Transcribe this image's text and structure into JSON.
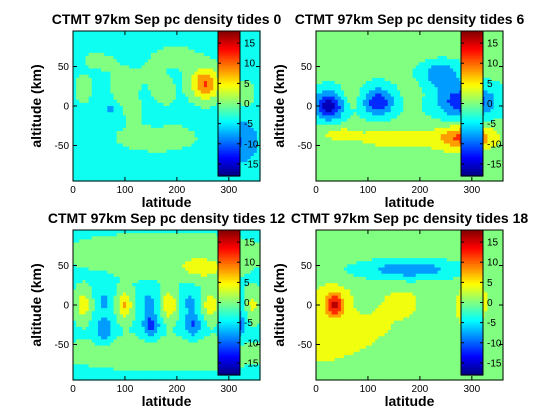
{
  "chart_data": [
    {
      "type": "heatmap",
      "title": "CTMT 97km Sep pc density tides 0",
      "xlabel": "latitude",
      "ylabel": "altitude (km)",
      "xlim": [
        0,
        360
      ],
      "ylim": [
        -95,
        95
      ],
      "xticks": [
        0,
        100,
        200,
        300
      ],
      "yticks": [
        50,
        0,
        -50
      ],
      "clim": [
        -18,
        18
      ],
      "cbar_ticks": [
        15,
        10,
        5,
        0,
        -5,
        -10,
        -15
      ],
      "background": -3.5,
      "blobs": [
        {
          "x": 40,
          "y": 60,
          "sx": 60,
          "sy": 22,
          "v": 1.5
        },
        {
          "x": 200,
          "y": 65,
          "sx": 70,
          "sy": 22,
          "v": 1.8
        },
        {
          "x": 120,
          "y": 30,
          "sx": 80,
          "sy": 30,
          "v": 1.5
        },
        {
          "x": 20,
          "y": 20,
          "sx": 15,
          "sy": 15,
          "v": 4.0
        },
        {
          "x": 95,
          "y": 15,
          "sx": 18,
          "sy": 15,
          "v": 4.5
        },
        {
          "x": 175,
          "y": 15,
          "sx": 18,
          "sy": 15,
          "v": 5.0
        },
        {
          "x": 255,
          "y": 28,
          "sx": 28,
          "sy": 20,
          "v": 14.0
        },
        {
          "x": 160,
          "y": -40,
          "sx": 110,
          "sy": 25,
          "v": 2.5
        },
        {
          "x": 320,
          "y": -45,
          "sx": 35,
          "sy": 28,
          "v": -7.0
        },
        {
          "x": 330,
          "y": 15,
          "sx": 25,
          "sy": 22,
          "v": 3.0
        },
        {
          "x": 75,
          "y": -3,
          "sx": 20,
          "sy": 13,
          "v": -3.5
        },
        {
          "x": 160,
          "y": -5,
          "sx": 22,
          "sy": 15,
          "v": -3.0
        },
        {
          "x": 115,
          "y": -5,
          "sx": 20,
          "sy": 12,
          "v": 3.0
        }
      ]
    },
    {
      "type": "heatmap",
      "title": "CTMT 97km Sep pc density tides 6",
      "xlabel": "latitude",
      "ylabel": "altitude (km)",
      "xlim": [
        0,
        360
      ],
      "ylim": [
        -95,
        95
      ],
      "xticks": [
        0,
        100,
        200,
        300
      ],
      "yticks": [
        50,
        0,
        -50
      ],
      "clim": [
        -18,
        18
      ],
      "cbar_ticks": [
        15,
        10,
        5,
        0,
        -5,
        -10,
        -15
      ],
      "background": -1.2,
      "blobs": [
        {
          "x": 180,
          "y": 70,
          "sx": 140,
          "sy": 20,
          "v": 1.5
        },
        {
          "x": 25,
          "y": 0,
          "sx": 30,
          "sy": 18,
          "v": -15.0
        },
        {
          "x": 120,
          "y": 5,
          "sx": 30,
          "sy": 18,
          "v": -12.0
        },
        {
          "x": 65,
          "y": 10,
          "sx": 20,
          "sy": 18,
          "v": 2.5
        },
        {
          "x": 290,
          "y": 5,
          "sx": 55,
          "sy": 20,
          "v": -13.0
        },
        {
          "x": 240,
          "y": 40,
          "sx": 40,
          "sy": 18,
          "v": -8.0
        },
        {
          "x": 290,
          "y": -40,
          "sx": 55,
          "sy": 15,
          "v": 13.0
        },
        {
          "x": 150,
          "y": -40,
          "sx": 80,
          "sy": 15,
          "v": 5.0
        },
        {
          "x": 40,
          "y": -35,
          "sx": 40,
          "sy": 12,
          "v": 4.0
        },
        {
          "x": 190,
          "y": 20,
          "sx": 25,
          "sy": 18,
          "v": 1.5
        },
        {
          "x": 180,
          "y": -70,
          "sx": 150,
          "sy": 20,
          "v": 1.8
        }
      ]
    },
    {
      "type": "heatmap",
      "title": "CTMT 97km Sep pc density tides 12",
      "xlabel": "latitude",
      "ylabel": "altitude (km)",
      "xlim": [
        0,
        360
      ],
      "ylim": [
        -95,
        95
      ],
      "xticks": [
        0,
        100,
        200,
        300
      ],
      "yticks": [
        50,
        0,
        -50
      ],
      "clim": [
        -18,
        18
      ],
      "cbar_ticks": [
        15,
        10,
        5,
        0,
        -5,
        -10,
        -15
      ],
      "background": -2.5,
      "blobs": [
        {
          "x": 180,
          "y": 65,
          "sx": 160,
          "sy": 20,
          "v": 3.0
        },
        {
          "x": 250,
          "y": 45,
          "sx": 50,
          "sy": 14,
          "v": 5.5
        },
        {
          "x": 140,
          "y": 45,
          "sx": 40,
          "sy": 12,
          "v": 2.5
        },
        {
          "x": 20,
          "y": 0,
          "sx": 14,
          "sy": 18,
          "v": 7.0
        },
        {
          "x": 100,
          "y": 0,
          "sx": 14,
          "sy": 18,
          "v": 9.0
        },
        {
          "x": 185,
          "y": 0,
          "sx": 14,
          "sy": 18,
          "v": 8.5
        },
        {
          "x": 265,
          "y": 0,
          "sx": 14,
          "sy": 18,
          "v": 8.0
        },
        {
          "x": 345,
          "y": 0,
          "sx": 12,
          "sy": 18,
          "v": 6.0
        },
        {
          "x": 60,
          "y": 5,
          "sx": 14,
          "sy": 15,
          "v": -4.5
        },
        {
          "x": 145,
          "y": 5,
          "sx": 14,
          "sy": 15,
          "v": -5.0
        },
        {
          "x": 225,
          "y": 5,
          "sx": 14,
          "sy": 15,
          "v": -4.5
        },
        {
          "x": 305,
          "y": 5,
          "sx": 14,
          "sy": 15,
          "v": -4.5
        },
        {
          "x": 60,
          "y": -30,
          "sx": 16,
          "sy": 16,
          "v": -7.5
        },
        {
          "x": 150,
          "y": -25,
          "sx": 16,
          "sy": 16,
          "v": -9.0
        },
        {
          "x": 230,
          "y": -25,
          "sx": 16,
          "sy": 16,
          "v": -8.0
        },
        {
          "x": 315,
          "y": -25,
          "sx": 16,
          "sy": 16,
          "v": -10.0
        },
        {
          "x": 180,
          "y": -60,
          "sx": 160,
          "sy": 18,
          "v": 3.0
        }
      ]
    },
    {
      "type": "heatmap",
      "title": "CTMT 97km Sep pc density tides 18",
      "xlabel": "latitude",
      "ylabel": "altitude (km)",
      "xlim": [
        0,
        360
      ],
      "ylim": [
        -95,
        95
      ],
      "xticks": [
        0,
        100,
        200,
        300
      ],
      "yticks": [
        50,
        0,
        -50
      ],
      "clim": [
        -18,
        18
      ],
      "cbar_ticks": [
        15,
        10,
        5,
        0,
        -5,
        -10,
        -15
      ],
      "background": 2.0,
      "blobs": [
        {
          "x": 180,
          "y": 45,
          "sx": 130,
          "sy": 16,
          "v": -10.0
        },
        {
          "x": 35,
          "y": 0,
          "sx": 18,
          "sy": 16,
          "v": 13.0
        },
        {
          "x": 300,
          "y": 0,
          "sx": 16,
          "sy": 15,
          "v": 9.0
        },
        {
          "x": 165,
          "y": 0,
          "sx": 18,
          "sy": 12,
          "v": 4.0
        },
        {
          "x": 230,
          "y": 10,
          "sx": 30,
          "sy": 15,
          "v": -1.0
        },
        {
          "x": 100,
          "y": 5,
          "sx": 20,
          "sy": 15,
          "v": -2.0
        },
        {
          "x": 200,
          "y": -45,
          "sx": 50,
          "sy": 25,
          "v": -3.5
        },
        {
          "x": 340,
          "y": -35,
          "sx": 25,
          "sy": 25,
          "v": -2.0
        },
        {
          "x": 120,
          "y": -20,
          "sx": 40,
          "sy": 20,
          "v": 1.0
        }
      ]
    }
  ]
}
